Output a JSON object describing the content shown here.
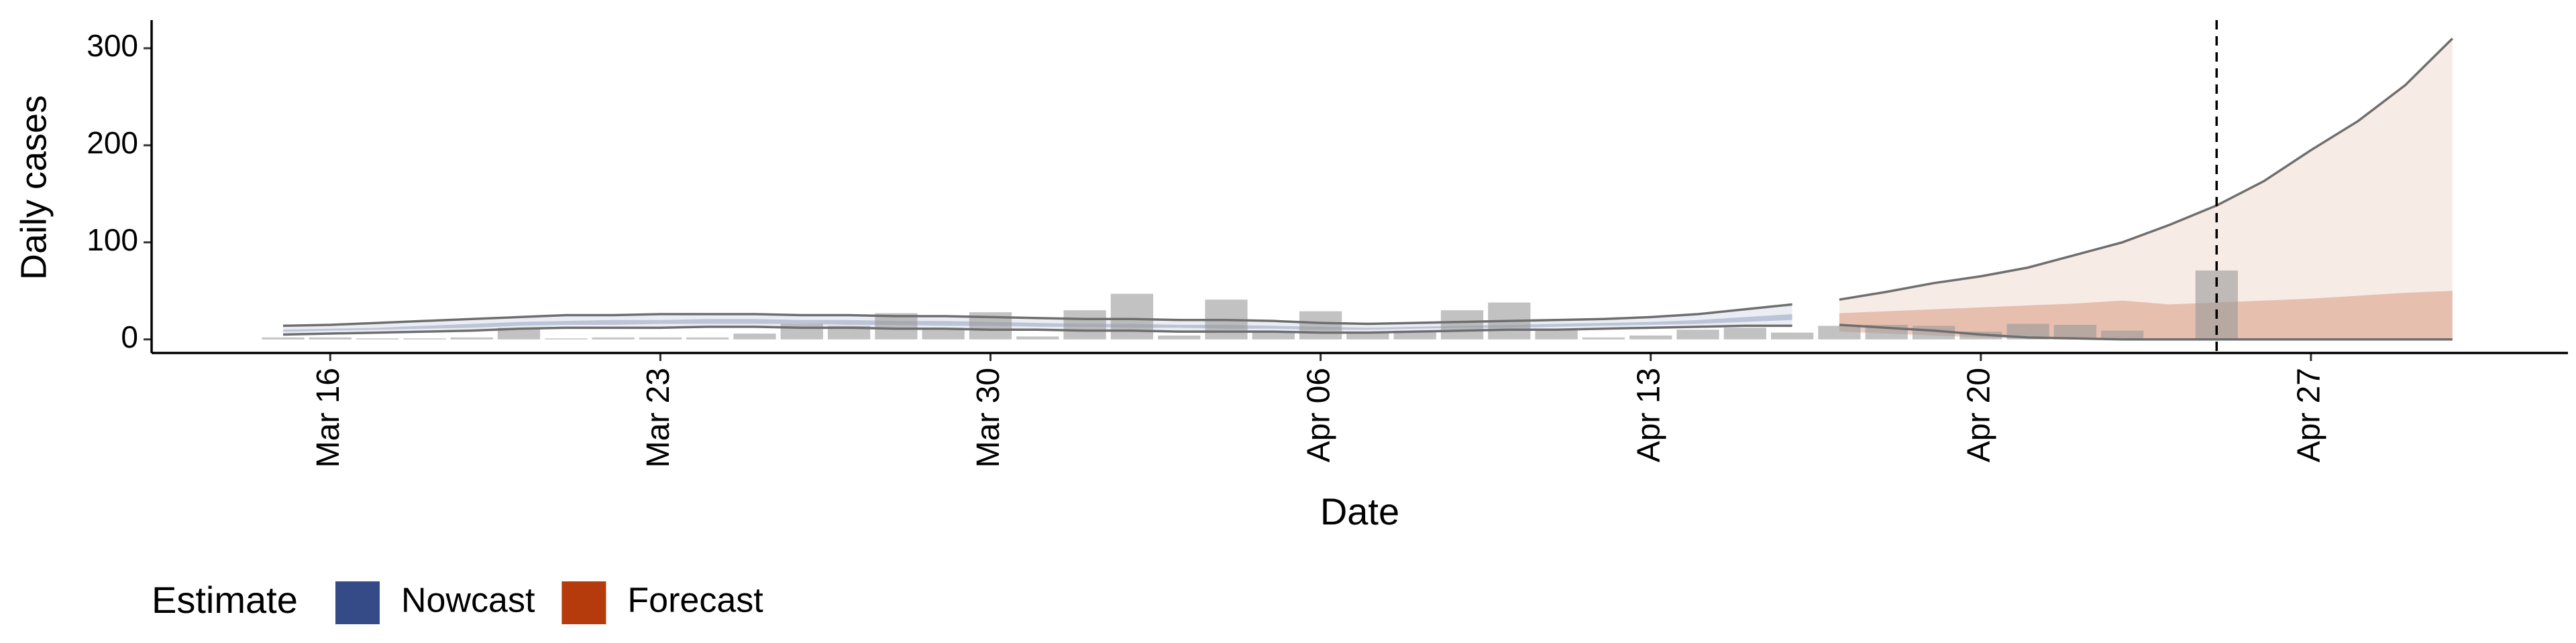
{
  "chart_data": {
    "type": "bar",
    "ylabel": "Daily cases",
    "xlabel": "Date",
    "legend_title": "Estimate",
    "legend_position": "bottom",
    "bar_color": "#999999",
    "line_color": "#6e6e6e",
    "vline": "Apr 25",
    "ylim": [
      -14,
      329
    ],
    "yticks": [
      0,
      100,
      200,
      300
    ],
    "x": [
      "Mar 15",
      "Mar 16",
      "Mar 17",
      "Mar 18",
      "Mar 19",
      "Mar 20",
      "Mar 21",
      "Mar 22",
      "Mar 23",
      "Mar 24",
      "Mar 25",
      "Mar 26",
      "Mar 27",
      "Mar 28",
      "Mar 29",
      "Mar 30",
      "Mar 31",
      "Apr 01",
      "Apr 02",
      "Apr 03",
      "Apr 04",
      "Apr 05",
      "Apr 06",
      "Apr 07",
      "Apr 08",
      "Apr 09",
      "Apr 10",
      "Apr 11",
      "Apr 12",
      "Apr 13",
      "Apr 14",
      "Apr 15",
      "Apr 16",
      "Apr 17",
      "Apr 18",
      "Apr 19",
      "Apr 20",
      "Apr 21",
      "Apr 22",
      "Apr 23",
      "Apr 24",
      "Apr 25",
      "Apr 26",
      "Apr 27",
      "Apr 28",
      "Apr 29",
      "Apr 30"
    ],
    "xticks": [
      "Mar 16",
      "Mar 23",
      "Mar 30",
      "Apr 06",
      "Apr 13",
      "Apr 20",
      "Apr 27"
    ],
    "values": [
      2,
      2,
      1,
      1,
      2,
      12,
      1,
      2,
      2,
      2,
      6,
      16,
      14,
      27,
      12,
      28,
      3,
      30,
      47,
      4,
      41,
      8,
      29,
      7,
      9,
      30,
      38,
      10,
      2,
      4,
      10,
      12,
      7,
      14,
      15,
      14,
      8,
      16,
      15,
      9,
      0,
      71,
      null,
      null,
      null,
      null,
      null
    ],
    "series": [
      {
        "name": "Nowcast",
        "color": "#344b87",
        "upper": [
          14,
          15,
          17,
          19,
          21,
          23,
          25,
          25,
          26,
          26,
          26,
          25,
          25,
          24,
          24,
          23,
          22,
          21,
          21,
          20,
          20,
          19,
          17,
          16,
          17,
          18,
          19,
          20,
          21,
          23,
          26,
          31,
          36,
          null,
          null,
          null,
          null,
          null,
          null,
          null,
          null,
          null,
          null,
          null,
          null,
          null,
          null
        ],
        "lower": [
          5,
          6,
          7,
          8,
          9,
          11,
          12,
          12,
          12,
          13,
          13,
          12,
          12,
          11,
          11,
          10,
          10,
          9,
          9,
          8,
          8,
          8,
          7,
          7,
          8,
          9,
          10,
          10,
          11,
          12,
          13,
          14,
          14,
          null,
          null,
          null,
          null,
          null,
          null,
          null,
          null,
          null,
          null,
          null,
          null,
          null,
          null
        ],
        "upper_50": [
          10,
          11,
          12,
          14,
          16,
          18,
          19,
          20,
          20,
          21,
          21,
          20,
          20,
          19,
          19,
          18,
          17,
          16,
          16,
          15,
          15,
          14,
          13,
          12,
          13,
          14,
          15,
          16,
          17,
          18,
          20,
          23,
          26,
          null,
          null,
          null,
          null,
          null,
          null,
          null,
          null,
          null,
          null,
          null,
          null,
          null,
          null
        ],
        "lower_50": [
          8,
          9,
          10,
          11,
          12,
          14,
          15,
          15,
          16,
          16,
          16,
          16,
          15,
          15,
          14,
          14,
          13,
          13,
          12,
          12,
          11,
          11,
          10,
          10,
          11,
          12,
          12,
          13,
          14,
          15,
          16,
          18,
          20,
          null,
          null,
          null,
          null,
          null,
          null,
          null,
          null,
          null,
          null,
          null,
          null,
          null,
          null
        ]
      },
      {
        "name": "Forecast",
        "color": "#b53a0c",
        "upper": [
          null,
          null,
          null,
          null,
          null,
          null,
          null,
          null,
          null,
          null,
          null,
          null,
          null,
          null,
          null,
          null,
          null,
          null,
          null,
          null,
          null,
          null,
          null,
          null,
          null,
          null,
          null,
          null,
          null,
          null,
          null,
          null,
          null,
          41,
          49,
          58,
          65,
          74,
          87,
          100,
          118,
          138,
          163,
          195,
          225,
          262,
          310
        ],
        "lower": [
          null,
          null,
          null,
          null,
          null,
          null,
          null,
          null,
          null,
          null,
          null,
          null,
          null,
          null,
          null,
          null,
          null,
          null,
          null,
          null,
          null,
          null,
          null,
          null,
          null,
          null,
          null,
          null,
          null,
          null,
          null,
          null,
          null,
          15,
          12,
          9,
          5,
          2,
          1,
          0,
          0,
          0,
          0,
          0,
          0,
          0,
          0
        ],
        "upper_50": [
          null,
          null,
          null,
          null,
          null,
          null,
          null,
          null,
          null,
          null,
          null,
          null,
          null,
          null,
          null,
          null,
          null,
          null,
          null,
          null,
          null,
          null,
          null,
          null,
          null,
          null,
          null,
          null,
          null,
          null,
          null,
          null,
          null,
          27,
          29,
          31,
          33,
          35,
          37,
          40,
          36,
          38,
          40,
          42,
          45,
          48,
          50
        ],
        "lower_50": [
          null,
          null,
          null,
          null,
          null,
          null,
          null,
          null,
          null,
          null,
          null,
          null,
          null,
          null,
          null,
          null,
          null,
          null,
          null,
          null,
          null,
          null,
          null,
          null,
          null,
          null,
          null,
          null,
          null,
          null,
          null,
          null,
          null,
          8,
          6,
          4,
          2,
          1,
          0,
          0,
          0,
          0,
          0,
          0,
          0,
          0,
          0
        ]
      }
    ]
  }
}
